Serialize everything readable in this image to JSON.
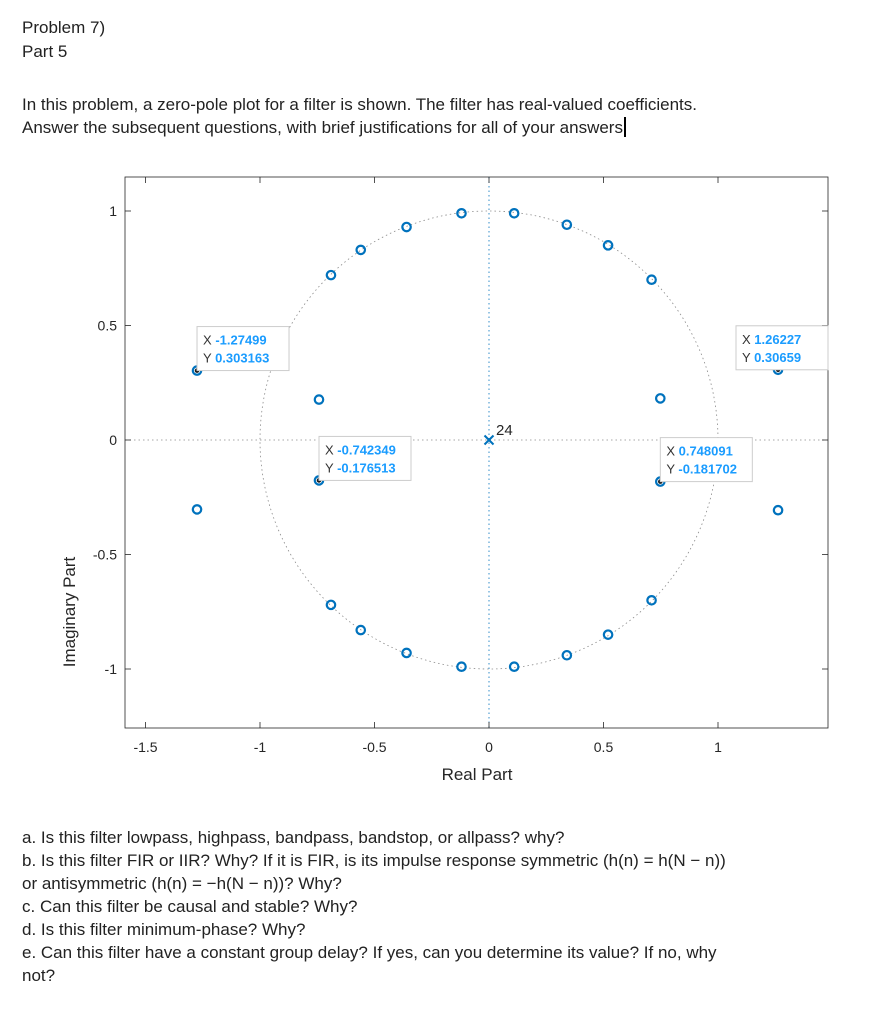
{
  "header": {
    "problem": "Problem 7)",
    "part": "Part 5"
  },
  "prompt": {
    "line1": "In this problem, a zero-pole plot for a filter is shown. The filter has real-valued coefficients.",
    "line2": "Answer the subsequent questions, with brief justifications for all of your answers"
  },
  "chart_data": {
    "type": "scatter",
    "xlabel": "Real Part",
    "ylabel": "Imaginary Part",
    "xlim": [
      -1.5,
      1.5
    ],
    "ylim": [
      -1.25,
      1.1
    ],
    "x_ticks": [
      -1.5,
      -1,
      -0.5,
      0,
      0.5,
      1
    ],
    "x_tick_labels": [
      "-1.5",
      "-1",
      "-0.5",
      "0",
      "0.5",
      "1"
    ],
    "y_ticks": [
      1,
      0.5,
      0,
      -0.5,
      -1
    ],
    "y_tick_labels": [
      "1",
      "0.5",
      "0",
      "-0.5",
      "-1"
    ],
    "grid": false,
    "unit_circle": true,
    "zeros": [
      {
        "x": -0.12,
        "y": 0.99
      },
      {
        "x": 0.11,
        "y": 0.99
      },
      {
        "x": -0.36,
        "y": 0.93
      },
      {
        "x": 0.34,
        "y": 0.94
      },
      {
        "x": -0.56,
        "y": 0.83
      },
      {
        "x": 0.52,
        "y": 0.85
      },
      {
        "x": -0.69,
        "y": 0.72
      },
      {
        "x": 0.71,
        "y": 0.7
      },
      {
        "x": -1.27499,
        "y": 0.303163
      },
      {
        "x": 1.26227,
        "y": 0.30659
      },
      {
        "x": -0.742349,
        "y": 0.176513
      },
      {
        "x": 0.748091,
        "y": 0.181702
      },
      {
        "x": -0.742349,
        "y": -0.176513
      },
      {
        "x": 0.748091,
        "y": -0.181702
      },
      {
        "x": -1.27499,
        "y": -0.303163
      },
      {
        "x": 1.26227,
        "y": -0.30659
      },
      {
        "x": -0.69,
        "y": -0.72
      },
      {
        "x": 0.71,
        "y": -0.7
      },
      {
        "x": -0.56,
        "y": -0.83
      },
      {
        "x": 0.52,
        "y": -0.85
      },
      {
        "x": -0.36,
        "y": -0.93
      },
      {
        "x": 0.34,
        "y": -0.94
      },
      {
        "x": -0.12,
        "y": -0.99
      },
      {
        "x": 0.11,
        "y": -0.99
      }
    ],
    "poles": [
      {
        "x": 0,
        "y": 0,
        "multiplicity_label": "24"
      }
    ],
    "datatips": [
      {
        "x_label": "X",
        "y_label": "Y",
        "x": "-1.27499",
        "y": "0.303163",
        "px": -1.27499,
        "py": 0.303163
      },
      {
        "x_label": "X",
        "y_label": "Y",
        "x": "1.26227",
        "y": "0.30659",
        "px": 1.26227,
        "py": 0.30659
      },
      {
        "x_label": "X",
        "y_label": "Y",
        "x": "-0.742349",
        "y": "-0.176513",
        "px": -0.742349,
        "py": -0.176513
      },
      {
        "x_label": "X",
        "y_label": "Y",
        "x": "0.748091",
        "y": "-0.181702",
        "px": 0.748091,
        "py": -0.181702
      }
    ],
    "colors": {
      "marker": "#0072bd",
      "axis": "#262626",
      "datatip_value": "#1a9cff",
      "guide": "#8a8a8a"
    }
  },
  "questions": [
    "a. Is this filter lowpass, highpass, bandpass, bandstop, or allpass? why?",
    "b. Is this filter FIR or IIR? Why? If it is FIR, is its impulse response symmetric (h(n) = h(N − n))",
    "or antisymmetric (h(n) = −h(N − n))? Why?",
    "c. Can this filter be causal and stable? Why?",
    "d. Is this filter minimum-phase? Why?",
    "e. Can this filter have a constant group delay? If yes, can you determine its value? If no, why",
    "not?"
  ]
}
